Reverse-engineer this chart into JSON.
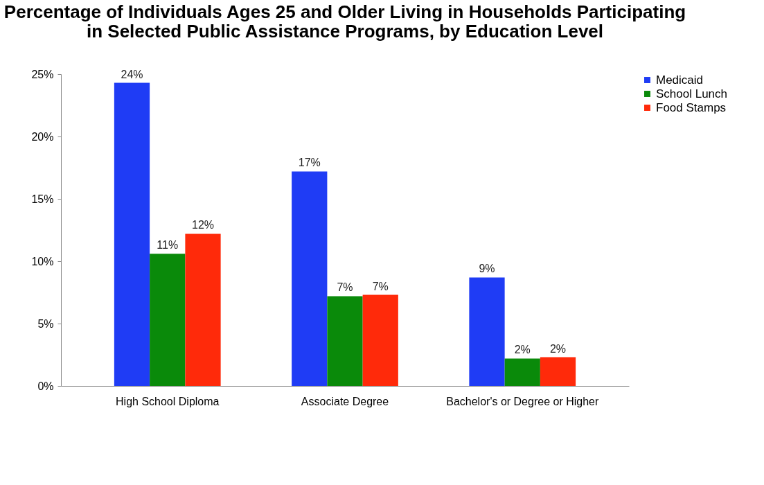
{
  "chart_data": {
    "type": "bar",
    "title": "Percentage of Individuals Ages 25 and Older Living in Households Participating in Selected Public Assistance Programs, by Education Level",
    "categories": [
      "High School Diploma",
      "Associate Degree",
      "Bachelor's or Degree or Higher"
    ],
    "series": [
      {
        "name": "Medicaid",
        "color": "#1f3cf5",
        "values": [
          24.3,
          17.2,
          8.7
        ],
        "value_labels": [
          "24%",
          "17%",
          "9%"
        ]
      },
      {
        "name": "School Lunch",
        "color": "#0a8a0a",
        "values": [
          10.6,
          7.2,
          2.2
        ],
        "value_labels": [
          "11%",
          "7%",
          "2%"
        ]
      },
      {
        "name": "Food Stamps",
        "color": "#ff2a0a",
        "values": [
          12.2,
          7.3,
          2.3
        ],
        "value_labels": [
          "12%",
          "7%",
          "2%"
        ]
      }
    ],
    "ylim": [
      0,
      25
    ],
    "yticks": [
      {
        "value": 0,
        "label": "0%"
      },
      {
        "value": 5,
        "label": "5%"
      },
      {
        "value": 10,
        "label": "10%"
      },
      {
        "value": 15,
        "label": "15%"
      },
      {
        "value": 20,
        "label": "20%"
      },
      {
        "value": 25,
        "label": "25%"
      }
    ],
    "grid": false,
    "legend": "right"
  }
}
